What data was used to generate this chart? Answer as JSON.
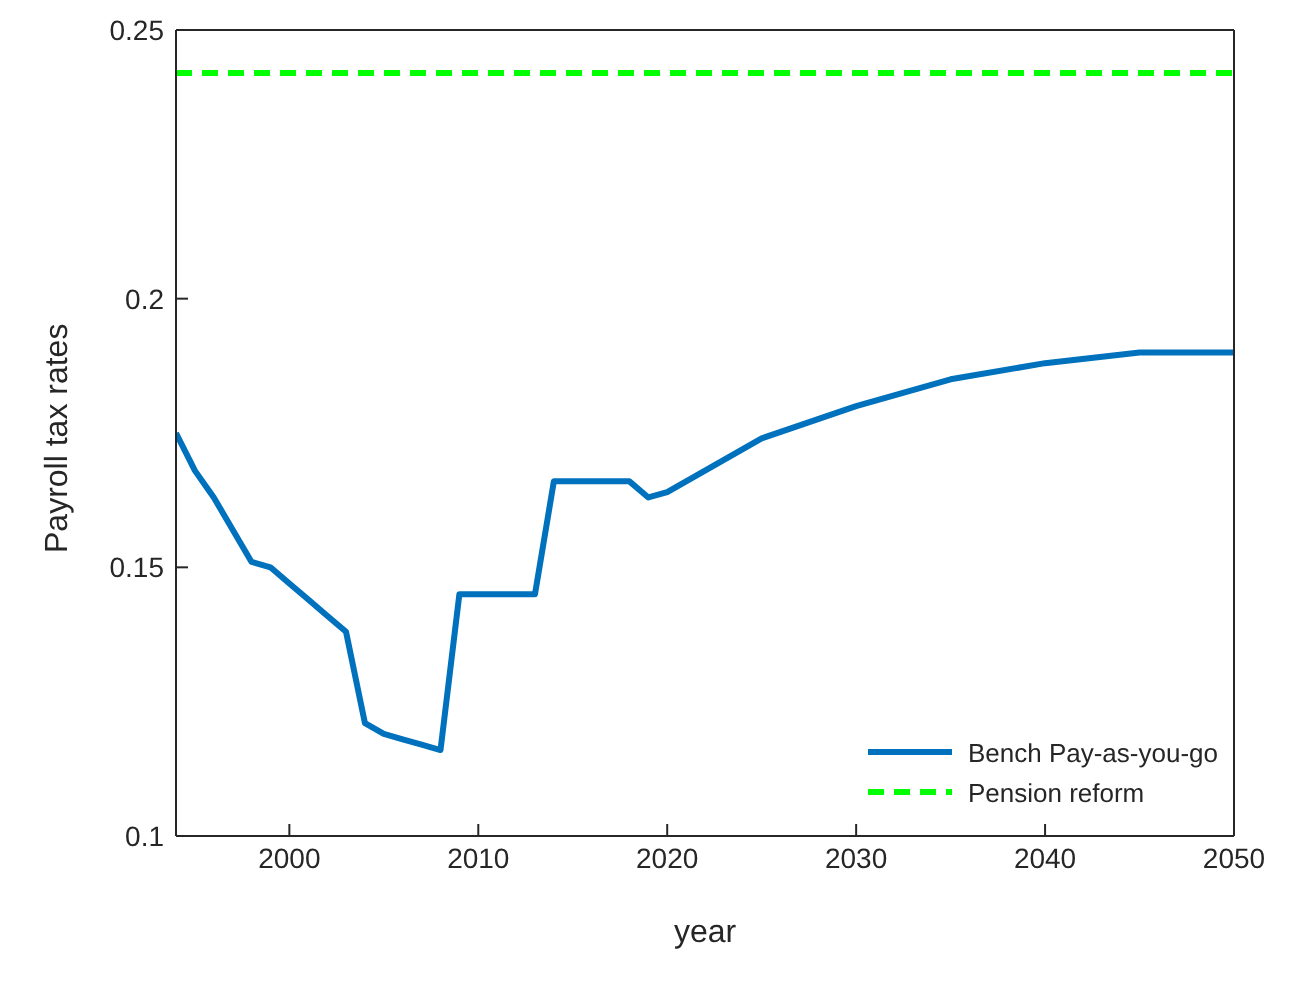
{
  "chart_data": {
    "type": "line",
    "xlabel": "year",
    "ylabel": "Payroll tax rates",
    "xlim": [
      1994,
      2050
    ],
    "ylim": [
      0.1,
      0.25
    ],
    "xticks": [
      2000,
      2010,
      2020,
      2030,
      2040,
      2050
    ],
    "yticks": [
      0.1,
      0.15,
      0.2,
      0.25
    ],
    "legend": "bottom right",
    "marker": "none",
    "series": [
      {
        "name": "Bench Pay-as-you-go",
        "color": "#0072bd",
        "line_style": "solid",
        "x": [
          1994,
          1995,
          1996,
          1997,
          1998,
          1999,
          2000,
          2001,
          2002,
          2003,
          2004,
          2005,
          2006,
          2007,
          2008,
          2009,
          2013,
          2014,
          2018,
          2019,
          2020,
          2025,
          2030,
          2035,
          2040,
          2045,
          2050
        ],
        "values": [
          0.175,
          0.168,
          0.163,
          0.157,
          0.151,
          0.15,
          0.147,
          0.144,
          0.141,
          0.138,
          0.121,
          0.119,
          0.118,
          0.117,
          0.116,
          0.145,
          0.145,
          0.166,
          0.166,
          0.163,
          0.164,
          0.174,
          0.18,
          0.185,
          0.188,
          0.19,
          0.19
        ]
      },
      {
        "name": "Pension reform",
        "color": "#00ff00",
        "line_style": "dashed",
        "x": [
          1994,
          2050
        ],
        "values": [
          0.242,
          0.242
        ]
      }
    ]
  }
}
